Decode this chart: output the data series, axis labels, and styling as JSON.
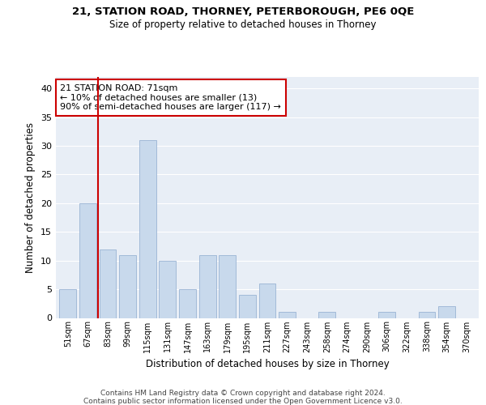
{
  "title1": "21, STATION ROAD, THORNEY, PETERBOROUGH, PE6 0QE",
  "title2": "Size of property relative to detached houses in Thorney",
  "xlabel": "Distribution of detached houses by size in Thorney",
  "ylabel": "Number of detached properties",
  "categories": [
    "51sqm",
    "67sqm",
    "83sqm",
    "99sqm",
    "115sqm",
    "131sqm",
    "147sqm",
    "163sqm",
    "179sqm",
    "195sqm",
    "211sqm",
    "227sqm",
    "243sqm",
    "258sqm",
    "274sqm",
    "290sqm",
    "306sqm",
    "322sqm",
    "338sqm",
    "354sqm",
    "370sqm"
  ],
  "values": [
    5,
    20,
    12,
    11,
    31,
    10,
    5,
    11,
    11,
    4,
    6,
    1,
    0,
    1,
    0,
    0,
    1,
    0,
    1,
    2,
    0
  ],
  "bar_color": "#c8d9ec",
  "bar_edge_color": "#9ab4d4",
  "red_line_x": 1.5,
  "annotation_box_text": "21 STATION ROAD: 71sqm\n← 10% of detached houses are smaller (13)\n90% of semi-detached houses are larger (117) →",
  "ylim": [
    0,
    42
  ],
  "yticks": [
    0,
    5,
    10,
    15,
    20,
    25,
    30,
    35,
    40
  ],
  "bg_color": "#ffffff",
  "plot_bg_color": "#e8eef6",
  "footer1": "Contains HM Land Registry data © Crown copyright and database right 2024.",
  "footer2": "Contains public sector information licensed under the Open Government Licence v3.0.",
  "red_line_color": "#cc0000",
  "grid_color": "#ffffff"
}
